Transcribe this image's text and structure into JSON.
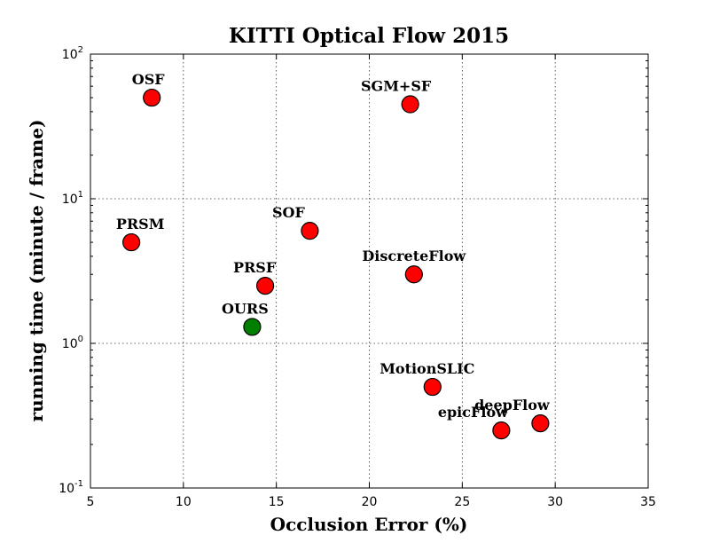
{
  "chart_data": {
    "type": "scatter",
    "title": "KITTI Optical Flow 2015",
    "xlabel": "Occlusion Error (%)",
    "ylabel": "running time (minute / frame)",
    "xlim": [
      5,
      35
    ],
    "ylim": [
      0.1,
      100
    ],
    "yscale": "log",
    "grid": true,
    "x_ticks": [
      5,
      10,
      15,
      20,
      25,
      30,
      35
    ],
    "y_ticks": [
      {
        "value": 0.1,
        "base": "10",
        "exp": "-1"
      },
      {
        "value": 1,
        "base": "10",
        "exp": "0"
      },
      {
        "value": 10,
        "base": "10",
        "exp": "1"
      },
      {
        "value": 100,
        "base": "10",
        "exp": "2"
      }
    ],
    "points": [
      {
        "label": "OSF",
        "x": 8.3,
        "y": 50,
        "color": "#ff0000",
        "label_pos": "above"
      },
      {
        "label": "SGM+SF",
        "x": 22.2,
        "y": 45,
        "color": "#ff0000",
        "label_pos": "above-left"
      },
      {
        "label": "SOF",
        "x": 16.8,
        "y": 6,
        "color": "#ff0000",
        "label_pos": "above-left"
      },
      {
        "label": "PRSM",
        "x": 7.2,
        "y": 5,
        "color": "#ff0000",
        "label_pos": "above-right"
      },
      {
        "label": "DiscreteFlow",
        "x": 22.4,
        "y": 3,
        "color": "#ff0000",
        "label_pos": "above-left"
      },
      {
        "label": "PRSF",
        "x": 14.4,
        "y": 2.5,
        "color": "#ff0000",
        "label_pos": "above"
      },
      {
        "label": "OURS",
        "x": 13.7,
        "y": 1.3,
        "color": "#007f00",
        "label_pos": "above"
      },
      {
        "label": "MotionSLIC",
        "x": 23.4,
        "y": 0.5,
        "color": "#ff0000",
        "label_pos": "above-left"
      },
      {
        "label": "deepFlow",
        "x": 29.2,
        "y": 0.28,
        "color": "#ff0000",
        "label_pos": "above-left"
      },
      {
        "label": "epicFlow",
        "x": 27.1,
        "y": 0.25,
        "color": "#ff0000",
        "label_pos": "above-left"
      }
    ]
  }
}
